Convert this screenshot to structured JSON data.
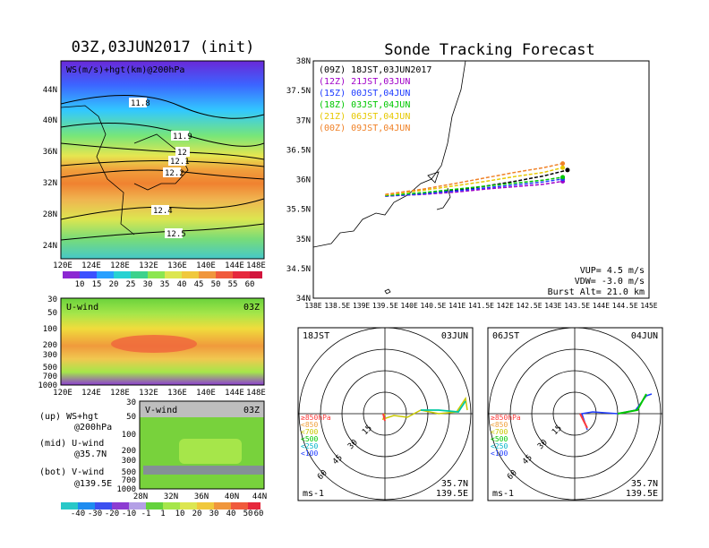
{
  "left_title": "03Z,03JUN2017 (init)",
  "right_title": "Sonde Tracking Forecast",
  "map": {
    "label": "WS(m/s)+hgt(km)@200hPa",
    "lat_ticks": [
      "44N",
      "40N",
      "36N",
      "32N",
      "28N",
      "24N"
    ],
    "lon_ticks": [
      "120E",
      "124E",
      "128E",
      "132E",
      "136E",
      "140E",
      "144E",
      "148E"
    ],
    "contour_labels": [
      "11.8",
      "11.9",
      "12",
      "12.1",
      "12.2",
      "12.4",
      "12.5"
    ],
    "colorbar_ticks": [
      "10",
      "15",
      "20",
      "25",
      "30",
      "35",
      "40",
      "45",
      "50",
      "55",
      "60"
    ]
  },
  "uwind": {
    "label": "U-wind",
    "time": "03Z",
    "p_ticks": [
      "30",
      "50",
      "100",
      "200",
      "300",
      "500",
      "700",
      "1000"
    ],
    "lon_ticks": [
      "120E",
      "124E",
      "128E",
      "132E",
      "136E",
      "140E",
      "144E",
      "148E"
    ]
  },
  "vwind": {
    "label": "V-wind",
    "time": "03Z",
    "p_ticks": [
      "30",
      "50",
      "100",
      "200",
      "300",
      "500",
      "700",
      "1000"
    ],
    "lat_ticks": [
      "28N",
      "32N",
      "36N",
      "40N",
      "44N"
    ]
  },
  "notes": {
    "up_1": "(up) WS+hgt",
    "up_2": "@200hPa",
    "mid_1": "(mid) U-wind",
    "mid_2": "@35.7N",
    "bot_1": "(bot) V-wind",
    "bot_2": "@139.5E"
  },
  "bottom_colorbar_ticks": [
    "-40",
    "-30",
    "-20",
    "-10",
    "-1",
    "1",
    "10",
    "20",
    "30",
    "40",
    "50",
    "60"
  ],
  "track": {
    "legend": [
      {
        "label": "(09Z)  18JST,03JUN2017",
        "color": "#000000"
      },
      {
        "label": "(12Z)  21JST,03JUN",
        "color": "#a000c8"
      },
      {
        "label": "(15Z)  00JST,04JUN",
        "color": "#1e3cff"
      },
      {
        "label": "(18Z)  03JST,04JUN",
        "color": "#00c800"
      },
      {
        "label": "(21Z)  06JST,04JUN",
        "color": "#e6c800"
      },
      {
        "label": "(00Z)  09JST,04JUN",
        "color": "#f08228"
      }
    ],
    "lat_ticks": [
      "38N",
      "37.5N",
      "37N",
      "36.5N",
      "36N",
      "35.5N",
      "35N",
      "34.5N",
      "34N"
    ],
    "lon_ticks": [
      "138E",
      "138.5E",
      "139E",
      "139.5E",
      "140E",
      "140.5E",
      "141E",
      "141.5E",
      "142E",
      "142.5E",
      "143E",
      "143.5E",
      "144E",
      "144.5E",
      "145E"
    ],
    "vup": "VUP=  4.5 m/s",
    "vdw": "VDW= -3.0 m/s",
    "burst": "Burst Alt= 21.0 km"
  },
  "chart_data": {
    "type": "line",
    "title": "Sonde Tracking Forecast",
    "xlim": [
      138,
      145
    ],
    "ylim": [
      34,
      38
    ],
    "series": [
      {
        "name": "(09Z) 18JST,03JUN2017",
        "x": [
          139.5,
          140.3,
          141.0,
          141.6,
          142.2,
          142.8,
          143.3
        ],
        "y": [
          35.72,
          35.76,
          35.82,
          35.89,
          35.97,
          36.06,
          36.16
        ]
      },
      {
        "name": "(12Z) 21JST,03JUN",
        "x": [
          139.5,
          140.3,
          141.0,
          141.6,
          142.2,
          142.8,
          143.2
        ],
        "y": [
          35.72,
          35.75,
          35.79,
          35.84,
          35.88,
          35.92,
          35.97
        ]
      },
      {
        "name": "(15Z) 00JST,04JUN",
        "x": [
          139.5,
          140.3,
          141.0,
          141.6,
          142.2,
          142.8,
          143.2
        ],
        "y": [
          35.72,
          35.76,
          35.81,
          35.86,
          35.91,
          35.96,
          36.01
        ]
      },
      {
        "name": "(18Z) 03JST,04JUN",
        "x": [
          139.5,
          140.3,
          141.0,
          141.6,
          142.2,
          142.8,
          143.2
        ],
        "y": [
          35.73,
          35.78,
          35.84,
          35.89,
          35.94,
          35.99,
          36.04
        ]
      },
      {
        "name": "(21Z) 06JST,04JUN",
        "x": [
          139.5,
          140.3,
          141.0,
          141.6,
          142.2,
          142.8,
          143.2
        ],
        "y": [
          35.74,
          35.82,
          35.9,
          35.97,
          36.05,
          36.12,
          36.2
        ]
      },
      {
        "name": "(00Z) 09JST,04JUN",
        "x": [
          139.5,
          140.3,
          141.0,
          141.6,
          142.2,
          142.8,
          143.2
        ],
        "y": [
          35.75,
          35.84,
          35.94,
          36.03,
          36.12,
          36.2,
          36.27
        ]
      }
    ]
  },
  "hodo1": {
    "left": "18JST",
    "right": "03JUN",
    "ring_labels": [
      "15",
      "30",
      "45",
      "60"
    ],
    "levels": [
      "≥850hPa",
      "<850",
      "<700",
      "<500",
      "<250",
      "<100"
    ],
    "lat": "35.7N",
    "lon": "139.5E",
    "unit": "ms-1"
  },
  "hodo2": {
    "left": "06JST",
    "right": "04JUN",
    "ring_labels": [
      "15",
      "30",
      "45",
      "60"
    ],
    "levels": [
      "≥850hPa",
      "<850",
      "<700",
      "<500",
      "<250",
      "<100"
    ],
    "lat": "35.7N",
    "lon": "139.5E",
    "unit": "ms-1"
  }
}
